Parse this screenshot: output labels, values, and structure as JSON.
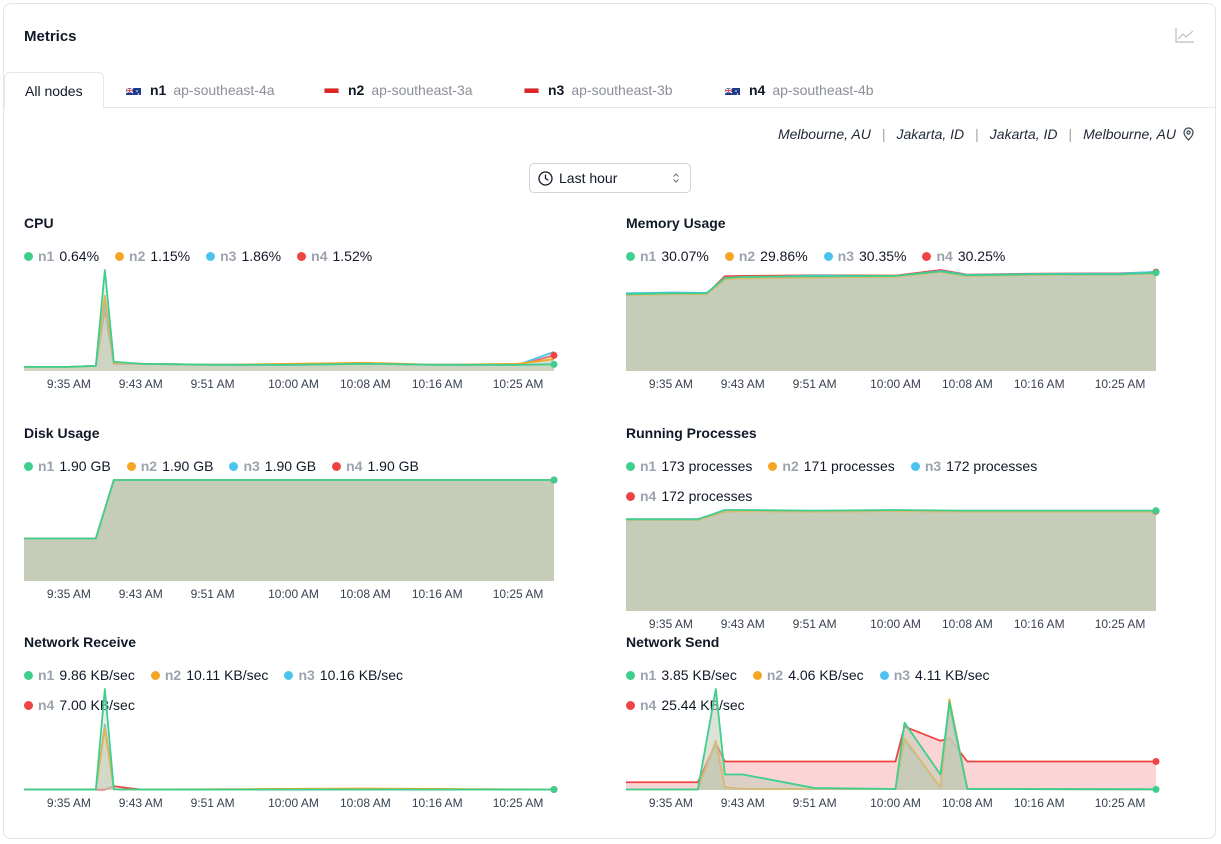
{
  "header": {
    "title": "Metrics",
    "chart_icon": "line-chart-icon"
  },
  "tabs": [
    {
      "label": "All nodes",
      "active": true
    },
    {
      "flag": "au",
      "node": "n1",
      "zone": "ap-southeast-4a"
    },
    {
      "flag": "id",
      "node": "n2",
      "zone": "ap-southeast-3a"
    },
    {
      "flag": "id",
      "node": "n3",
      "zone": "ap-southeast-3b"
    },
    {
      "flag": "au",
      "node": "n4",
      "zone": "ap-southeast-4b"
    }
  ],
  "locations": [
    "Melbourne, AU",
    "Jakarta, ID",
    "Jakarta, ID",
    "Melbourne, AU"
  ],
  "time_range": {
    "label": "Last hour"
  },
  "colors": {
    "n1": "#3ecf8e",
    "n2": "#f5a524",
    "n3": "#4cc3ef",
    "n4": "#ef4444",
    "fill": "#c2cbb5"
  },
  "x_ticks": [
    "9:35 AM",
    "9:43 AM",
    "9:51 AM",
    "10:00 AM",
    "10:08 AM",
    "10:16 AM",
    "10:25 AM"
  ],
  "metrics": {
    "cpu": {
      "title": "CPU",
      "legend": [
        {
          "node": "n1",
          "value": "0.64%"
        },
        {
          "node": "n2",
          "value": "1.15%"
        },
        {
          "node": "n3",
          "value": "1.86%"
        },
        {
          "node": "n4",
          "value": "1.52%"
        }
      ]
    },
    "memory": {
      "title": "Memory Usage",
      "legend": [
        {
          "node": "n1",
          "value": "30.07%"
        },
        {
          "node": "n2",
          "value": "29.86%"
        },
        {
          "node": "n3",
          "value": "30.35%"
        },
        {
          "node": "n4",
          "value": "30.25%"
        }
      ]
    },
    "disk": {
      "title": "Disk Usage",
      "legend": [
        {
          "node": "n1",
          "value": "1.90 GB"
        },
        {
          "node": "n2",
          "value": "1.90 GB"
        },
        {
          "node": "n3",
          "value": "1.90 GB"
        },
        {
          "node": "n4",
          "value": "1.90 GB"
        }
      ]
    },
    "processes": {
      "title": "Running Processes",
      "legend": [
        {
          "node": "n1",
          "value": "173 processes"
        },
        {
          "node": "n2",
          "value": "171 processes"
        },
        {
          "node": "n3",
          "value": "172 processes"
        },
        {
          "node": "n4",
          "value": "172 processes"
        }
      ]
    },
    "net_recv": {
      "title": "Network Receive",
      "legend": [
        {
          "node": "n1",
          "value": "9.86 KB/sec"
        },
        {
          "node": "n2",
          "value": "10.11 KB/sec"
        },
        {
          "node": "n3",
          "value": "10.16 KB/sec"
        },
        {
          "node": "n4",
          "value": "7.00 KB/sec"
        }
      ]
    },
    "net_send": {
      "title": "Network Send",
      "legend": [
        {
          "node": "n1",
          "value": "3.85 KB/sec"
        },
        {
          "node": "n2",
          "value": "4.06 KB/sec"
        },
        {
          "node": "n3",
          "value": "4.11 KB/sec"
        },
        {
          "node": "n4",
          "value": "25.44 KB/sec"
        }
      ]
    }
  },
  "chart_data": [
    {
      "type": "line",
      "title": "CPU",
      "x": [
        "9:30 AM",
        "9:35 AM",
        "9:38 AM",
        "9:39 AM",
        "9:40 AM",
        "9:43 AM",
        "9:51 AM",
        "10:00 AM",
        "10:08 AM",
        "10:16 AM",
        "10:25 AM",
        "10:29 AM"
      ],
      "series": [
        {
          "name": "n1",
          "values": [
            0.4,
            0.4,
            0.5,
            9.8,
            0.9,
            0.7,
            0.6,
            0.6,
            0.7,
            0.6,
            0.6,
            0.64
          ]
        },
        {
          "name": "n2",
          "values": [
            0.4,
            0.4,
            0.5,
            7.3,
            0.8,
            0.7,
            0.6,
            0.7,
            0.8,
            0.6,
            0.7,
            1.15
          ]
        },
        {
          "name": "n3",
          "values": [
            0.4,
            0.4,
            0.5,
            6.5,
            0.8,
            0.7,
            0.6,
            0.6,
            0.7,
            0.6,
            0.6,
            1.86
          ]
        },
        {
          "name": "n4",
          "values": [
            0.4,
            0.4,
            0.5,
            6.0,
            0.7,
            0.7,
            0.6,
            0.6,
            0.7,
            0.6,
            0.6,
            1.52
          ]
        }
      ]
    },
    {
      "type": "area",
      "title": "Memory Usage",
      "x": [
        "9:30 AM",
        "9:35 AM",
        "9:39 AM",
        "9:41 AM",
        "9:43 AM",
        "9:51 AM",
        "10:00 AM",
        "10:05 AM",
        "10:08 AM",
        "10:16 AM",
        "10:25 AM",
        "10:29 AM"
      ],
      "series": [
        {
          "name": "n1",
          "values": [
            23.5,
            23.8,
            23.8,
            28.5,
            28.8,
            29.0,
            29.1,
            30.5,
            29.3,
            29.6,
            29.6,
            30.07
          ]
        },
        {
          "name": "n2",
          "values": [
            23.2,
            23.5,
            23.5,
            28.0,
            28.3,
            28.6,
            28.8,
            30.3,
            29.0,
            29.4,
            29.5,
            29.86
          ]
        },
        {
          "name": "n3",
          "values": [
            23.8,
            24.0,
            23.9,
            28.3,
            28.6,
            29.2,
            29.0,
            30.6,
            29.4,
            29.7,
            29.8,
            30.35
          ]
        },
        {
          "name": "n4",
          "values": [
            23.4,
            23.7,
            23.6,
            29.0,
            29.1,
            29.3,
            29.2,
            30.9,
            29.5,
            29.8,
            29.9,
            30.25
          ]
        }
      ]
    },
    {
      "type": "area",
      "title": "Disk Usage",
      "x": [
        "9:30 AM",
        "9:35 AM",
        "9:38 AM",
        "9:40 AM",
        "9:43 AM",
        "10:29 AM"
      ],
      "series": [
        {
          "name": "n1",
          "values": [
            0.8,
            0.8,
            0.8,
            1.9,
            1.9,
            1.9
          ]
        },
        {
          "name": "n2",
          "values": [
            0.8,
            0.8,
            0.8,
            1.9,
            1.9,
            1.9
          ]
        },
        {
          "name": "n3",
          "values": [
            0.8,
            0.8,
            0.8,
            1.9,
            1.9,
            1.9
          ]
        },
        {
          "name": "n4",
          "values": [
            0.8,
            0.8,
            0.8,
            1.9,
            1.9,
            1.9
          ]
        }
      ]
    },
    {
      "type": "area",
      "title": "Running Processes",
      "x": [
        "9:30 AM",
        "9:35 AM",
        "9:38 AM",
        "9:41 AM",
        "9:43 AM",
        "9:51 AM",
        "10:00 AM",
        "10:08 AM",
        "10:16 AM",
        "10:25 AM",
        "10:29 AM"
      ],
      "series": [
        {
          "name": "n1",
          "values": [
            158,
            158,
            158,
            174,
            174,
            173,
            174,
            173,
            173,
            173,
            173
          ]
        },
        {
          "name": "n2",
          "values": [
            157,
            157,
            157,
            171,
            172,
            171,
            172,
            171,
            171,
            171,
            171
          ]
        },
        {
          "name": "n3",
          "values": [
            158,
            158,
            158,
            173,
            173,
            172,
            173,
            172,
            172,
            172,
            172
          ]
        },
        {
          "name": "n4",
          "values": [
            158,
            158,
            158,
            173,
            173,
            172,
            173,
            172,
            172,
            172,
            172
          ]
        }
      ]
    },
    {
      "type": "line",
      "title": "Network Receive",
      "x": [
        "9:30 AM",
        "9:35 AM",
        "9:38 AM",
        "9:39 AM",
        "9:40 AM",
        "9:43 AM",
        "10:08 AM",
        "10:29 AM"
      ],
      "series": [
        {
          "name": "n1",
          "values": [
            0.3,
            0.3,
            0.3,
            68,
            0.5,
            0.3,
            0.3,
            0.3
          ]
        },
        {
          "name": "n2",
          "values": [
            0.3,
            0.3,
            0.3,
            42,
            0.5,
            0.3,
            1.0,
            0.3
          ]
        },
        {
          "name": "n3",
          "values": [
            0.3,
            0.3,
            0.3,
            44,
            0.5,
            0.3,
            0.3,
            0.3
          ]
        },
        {
          "name": "n4",
          "values": [
            0.3,
            0.3,
            0.3,
            0.3,
            2.5,
            0.3,
            0.3,
            0.3
          ]
        }
      ]
    },
    {
      "type": "area",
      "title": "Network Send",
      "x": [
        "9:30 AM",
        "9:38 AM",
        "9:40 AM",
        "9:41 AM",
        "9:43 AM",
        "9:51 AM",
        "10:00 AM",
        "10:01 AM",
        "10:05 AM",
        "10:06 AM",
        "10:08 AM",
        "10:29 AM"
      ],
      "series": [
        {
          "name": "n1",
          "values": [
            0.5,
            0.5,
            78,
            12,
            12,
            1.5,
            0.8,
            52,
            12,
            68,
            0.8,
            0.5
          ]
        },
        {
          "name": "n2",
          "values": [
            0.5,
            0.5,
            38,
            2.0,
            0.8,
            0.8,
            0.8,
            40,
            2.0,
            70,
            0.8,
            0.5
          ]
        },
        {
          "name": "n3",
          "values": [
            0.5,
            0.5,
            36,
            2.0,
            0.8,
            0.8,
            0.8,
            38,
            2.0,
            64,
            0.8,
            0.5
          ]
        },
        {
          "name": "n4",
          "values": [
            6.0,
            6.0,
            36,
            22,
            22,
            22,
            22,
            49,
            38,
            40,
            22,
            22
          ]
        }
      ]
    }
  ]
}
